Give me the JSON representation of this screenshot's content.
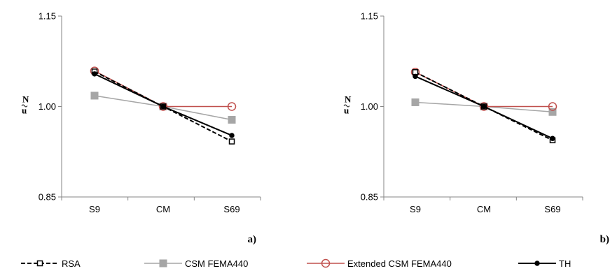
{
  "chart_data": [
    {
      "type": "line",
      "panel_label": "a)",
      "ylabel_main": "u",
      "ylabel_sub": "N",
      "categories": [
        "S9",
        "CM",
        "S69"
      ],
      "yticks": [
        "1.15",
        "1.00",
        "0.85"
      ],
      "ylim": [
        0.85,
        1.15
      ],
      "grid": false,
      "legend_position": "bottom",
      "series": [
        {
          "name": "RSA",
          "values": [
            1.058,
            1.0,
            0.942
          ]
        },
        {
          "name": "CSM FEMA440",
          "values": [
            1.018,
            1.0,
            0.978
          ]
        },
        {
          "name": "Extended CSM FEMA440",
          "values": [
            1.059,
            1.0,
            1.0
          ]
        },
        {
          "name": "TH",
          "values": [
            1.054,
            1.0,
            0.952
          ]
        }
      ]
    },
    {
      "type": "line",
      "panel_label": "b)",
      "ylabel_main": "u",
      "ylabel_sub": "N",
      "categories": [
        "S9",
        "CM",
        "S69"
      ],
      "yticks": [
        "1.15",
        "1.00",
        "0.85"
      ],
      "ylim": [
        0.85,
        1.15
      ],
      "grid": false,
      "legend_position": "bottom",
      "series": [
        {
          "name": "RSA",
          "values": [
            1.057,
            1.0,
            0.944
          ]
        },
        {
          "name": "CSM FEMA440",
          "values": [
            1.007,
            1.0,
            0.991
          ]
        },
        {
          "name": "Extended CSM FEMA440",
          "values": [
            1.057,
            1.0,
            1.0
          ]
        },
        {
          "name": "TH",
          "values": [
            1.05,
            1.0,
            0.947
          ]
        }
      ]
    }
  ],
  "legend": [
    {
      "label": "RSA",
      "color": "#000000",
      "dash": "dashed",
      "marker": "open-square"
    },
    {
      "label": "CSM FEMA440",
      "color": "#a6a6a6",
      "dash": "solid",
      "marker": "filled-square"
    },
    {
      "label": "Extended CSM FEMA440",
      "color": "#c0504d",
      "dash": "solid",
      "marker": "open-circle"
    },
    {
      "label": "TH",
      "color": "#000000",
      "dash": "solid",
      "marker": "filled-circle"
    }
  ]
}
